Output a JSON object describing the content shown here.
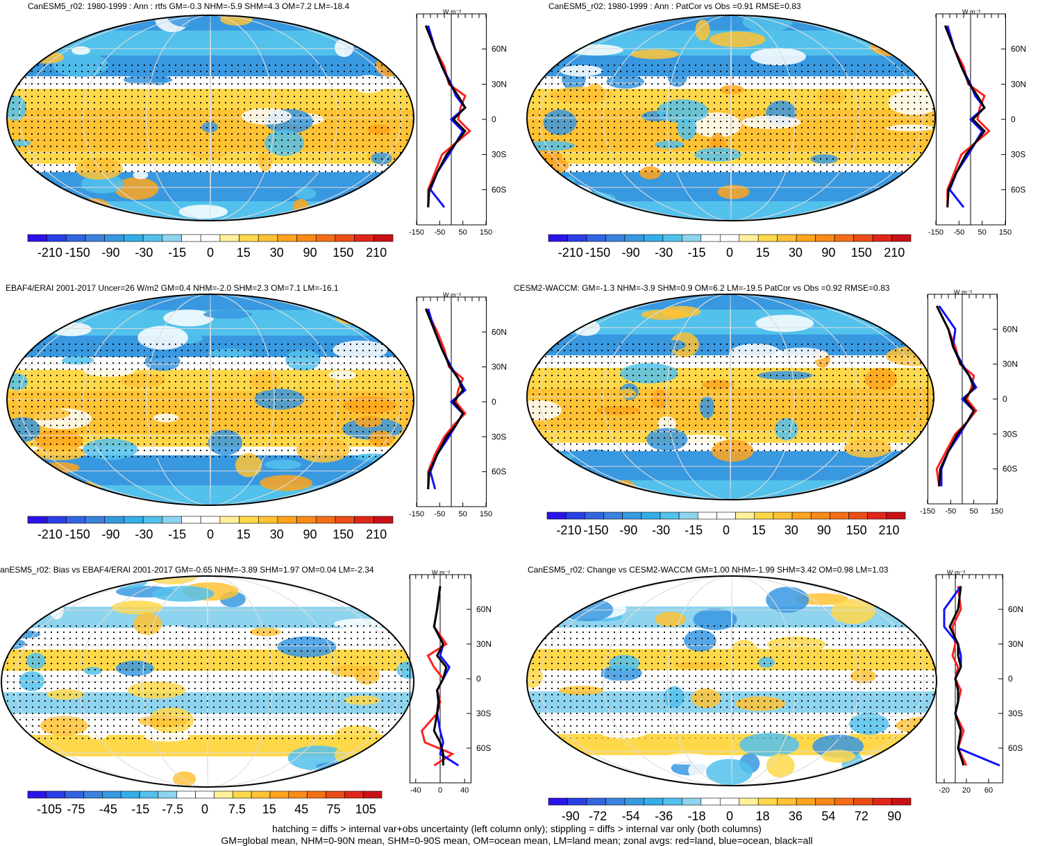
{
  "panels": [
    {
      "title": "CanESM5_r02: 1980-1999 : Ann : rtfs GM=-0.3 NHM=-5.9 SHM=4.3 OM=7.2 LM=-18.4",
      "colorbar_labels": [
        "-210",
        "-150",
        "-90",
        "-30",
        "-15",
        "0",
        "15",
        "30",
        "90",
        "150",
        "210"
      ],
      "zonal_xticks": [
        "-150",
        "-50",
        "50",
        "150"
      ],
      "zonal_xlim": [
        -150,
        150
      ],
      "zonal_unit": "W m⁻²"
    },
    {
      "title": "CanESM5_r02: 1980-1999 : Ann : PatCor vs Obs =0.91 RMSE=0.83",
      "colorbar_labels": [
        "-210",
        "-150",
        "-90",
        "-30",
        "-15",
        "0",
        "15",
        "30",
        "90",
        "150",
        "210"
      ],
      "zonal_xticks": [
        "-150",
        "-50",
        "50",
        "150"
      ],
      "zonal_xlim": [
        -150,
        150
      ],
      "zonal_unit": "W m⁻²"
    },
    {
      "title": "EBAF4/ERAI 2001-2017 Uncer=26 W/m2 GM=0.4 NHM=-2.0 SHM=2.3 OM=7.1 LM=-16.1",
      "colorbar_labels": [
        "-210",
        "-150",
        "-90",
        "-30",
        "-15",
        "0",
        "15",
        "30",
        "90",
        "150",
        "210"
      ],
      "zonal_xticks": [
        "-150",
        "-50",
        "50",
        "150"
      ],
      "zonal_xlim": [
        -150,
        150
      ],
      "zonal_unit": "W m⁻²"
    },
    {
      "title": "CESM2-WACCM: GM=-1.3 NHM=-3.9 SHM=0.9 OM=6.2 LM=-19.5 PatCor vs Obs =0.92 RMSE=0.83",
      "colorbar_labels": [
        "-210",
        "-150",
        "-90",
        "-30",
        "-15",
        "0",
        "15",
        "30",
        "90",
        "150",
        "210"
      ],
      "zonal_xticks": [
        "-150",
        "-50",
        "50",
        "150"
      ],
      "zonal_xlim": [
        -150,
        150
      ],
      "zonal_unit": "W m⁻²"
    },
    {
      "title": "anESM5_r02: Bias vs EBAF4/ERAI 2001-2017 GM=-0.65 NHM=-3.89 SHM=1.97 OM=0.04 LM=-2.34",
      "colorbar_labels": [
        "-105",
        "-75",
        "-45",
        "-15",
        "-7.5",
        "0",
        "7.5",
        "15",
        "45",
        "75",
        "105"
      ],
      "zonal_xticks": [
        "-40",
        "0",
        "40"
      ],
      "zonal_xlim": [
        -50,
        50
      ],
      "zonal_unit": "W m⁻²"
    },
    {
      "title": "CanESM5_r02: Change vs CESM2-WACCM GM=1.00 NHM=-1.99 SHM=3.42 OM=0.98 LM=1.03",
      "colorbar_labels": [
        "-90",
        "-72",
        "-54",
        "-36",
        "-18",
        "0",
        "18",
        "36",
        "54",
        "72",
        "90"
      ],
      "zonal_xticks": [
        "-20",
        "20",
        "60"
      ],
      "zonal_xlim": [
        -35,
        85
      ],
      "zonal_unit": "W m⁻²"
    }
  ],
  "lat_ticks": [
    "60N",
    "30N",
    "0",
    "30S",
    "60S"
  ],
  "colors": {
    "cbar": [
      "#2b14e8",
      "#2a3fe6",
      "#3365e0",
      "#3b82dd",
      "#3898e0",
      "#33aee8",
      "#52c1ec",
      "#8ed4ee",
      "#ffffff",
      "#ffffff",
      "#fff099",
      "#ffd84a",
      "#ffc234",
      "#ffa41c",
      "#f98a18",
      "#f46e16",
      "#ec4d16",
      "#e0261a",
      "#c81016"
    ],
    "land": "#ff2020",
    "ocean": "#1010ff",
    "all": "#000000"
  },
  "footer": {
    "line1": "hatching = diffs > internal var+obs uncertainty (left column only); stippling = diffs > internal var only (both columns)",
    "line2": "GM=global mean, NHM=0-90N mean, SHM=0-90S mean, OM=ocean mean, LM=land mean; zonal avgs: red=land, blue=ocean, black=all"
  },
  "chart_data": [
    {
      "type": "heatmap",
      "title": "CanESM5_r02: 1980-1999 : Ann : rtfs GM=-0.3 NHM=-5.9 SHM=4.3 OM=7.2 LM=-18.4",
      "colorbar": [
        "-210",
        "-150",
        "-90",
        "-30",
        "-15",
        "0",
        "15",
        "30",
        "90",
        "150",
        "210"
      ],
      "zonal_mean": {
        "lat": [
          80,
          60,
          45,
          30,
          20,
          10,
          0,
          -10,
          -20,
          -30,
          -45,
          -60,
          -75
        ],
        "land": [
          -110,
          -70,
          -30,
          -10,
          60,
          40,
          30,
          80,
          20,
          -40,
          -70,
          -100,
          -100
        ],
        "ocean": [
          -100,
          -70,
          -40,
          0,
          20,
          60,
          0,
          50,
          20,
          -10,
          -60,
          -90,
          -30
        ],
        "all": [
          -110,
          -70,
          -40,
          -5,
          30,
          60,
          10,
          60,
          20,
          -20,
          -60,
          -95,
          -100
        ]
      },
      "xlim": [
        -150,
        150
      ]
    },
    {
      "type": "heatmap",
      "title": "CanESM5_r02: 1980-1999 : Ann : PatCor vs Obs =0.91 RMSE=0.83",
      "colorbar": [
        "-210",
        "-150",
        "-90",
        "-30",
        "-15",
        "0",
        "15",
        "30",
        "90",
        "150",
        "210"
      ],
      "zonal_mean": {
        "lat": [
          80,
          60,
          45,
          30,
          20,
          10,
          0,
          -10,
          -20,
          -30,
          -45,
          -60,
          -75
        ],
        "land": [
          -110,
          -70,
          -30,
          -10,
          60,
          40,
          30,
          80,
          20,
          -40,
          -70,
          -100,
          -100
        ],
        "ocean": [
          -100,
          -70,
          -40,
          0,
          20,
          60,
          0,
          50,
          20,
          -10,
          -60,
          -90,
          -30
        ],
        "all": [
          -110,
          -70,
          -40,
          -5,
          30,
          60,
          10,
          60,
          20,
          -20,
          -60,
          -95,
          -100
        ]
      },
      "xlim": [
        -150,
        150
      ]
    },
    {
      "type": "heatmap",
      "title": "EBAF4/ERAI 2001-2017 Uncer=26 W/m2 GM=0.4 NHM=-2.0 SHM=2.3 OM=7.1 LM=-16.1",
      "colorbar": [
        "-210",
        "-150",
        "-90",
        "-30",
        "-15",
        "0",
        "15",
        "30",
        "90",
        "150",
        "210"
      ],
      "zonal_mean": {
        "lat": [
          80,
          60,
          45,
          30,
          20,
          10,
          0,
          -10,
          -20,
          -30,
          -45,
          -60,
          -75
        ],
        "land": [
          -110,
          -60,
          -30,
          -10,
          50,
          30,
          20,
          60,
          10,
          -30,
          -70,
          -100,
          -100
        ],
        "ocean": [
          -100,
          -70,
          -40,
          0,
          30,
          60,
          0,
          50,
          20,
          -10,
          -60,
          -90,
          -70
        ],
        "all": [
          -110,
          -70,
          -40,
          -5,
          30,
          50,
          10,
          50,
          20,
          -20,
          -60,
          -95,
          -100
        ]
      },
      "xlim": [
        -150,
        150
      ]
    },
    {
      "type": "heatmap",
      "title": "CESM2-WACCM: GM=-1.3 NHM=-3.9 SHM=0.9 OM=6.2 LM=-19.5 PatCor vs Obs =0.92 RMSE=0.83",
      "colorbar": [
        "-210",
        "-150",
        "-90",
        "-30",
        "-15",
        "0",
        "15",
        "30",
        "90",
        "150",
        "210"
      ],
      "zonal_mean": {
        "lat": [
          80,
          60,
          45,
          30,
          20,
          10,
          0,
          -10,
          -20,
          -30,
          -45,
          -60,
          -75
        ],
        "land": [
          -110,
          -60,
          -30,
          -10,
          50,
          40,
          20,
          60,
          20,
          -30,
          -70,
          -110,
          -100
        ],
        "ocean": [
          -100,
          -30,
          -40,
          0,
          30,
          60,
          0,
          50,
          20,
          -10,
          -60,
          -90,
          -90
        ],
        "all": [
          -110,
          -60,
          -40,
          -5,
          30,
          50,
          10,
          50,
          20,
          -20,
          -60,
          -95,
          -100
        ]
      },
      "xlim": [
        -150,
        150
      ]
    },
    {
      "type": "heatmap",
      "title": "anESM5_r02: Bias vs EBAF4/ERAI 2001-2017 GM=-0.65 NHM=-3.89 SHM=1.97 OM=0.04 LM=-2.34",
      "colorbar": [
        "-105",
        "-75",
        "-45",
        "-15",
        "-7.5",
        "0",
        "7.5",
        "15",
        "45",
        "75",
        "105"
      ],
      "zonal_mean": {
        "lat": [
          80,
          60,
          45,
          30,
          20,
          10,
          0,
          -10,
          -20,
          -30,
          -45,
          -55,
          -65,
          -75
        ],
        "land": [
          0,
          -5,
          -10,
          10,
          -20,
          -10,
          5,
          -5,
          0,
          -5,
          -30,
          -25,
          20,
          -10
        ],
        "ocean": [
          0,
          -5,
          -10,
          5,
          0,
          15,
          5,
          -5,
          -3,
          -5,
          0,
          5,
          0,
          30
        ],
        "all": [
          0,
          -5,
          -10,
          5,
          -5,
          10,
          5,
          -5,
          -2,
          -5,
          -10,
          0,
          5,
          5
        ]
      },
      "xlim": [
        -50,
        50
      ]
    },
    {
      "type": "heatmap",
      "title": "CanESM5_r02: Change vs CESM2-WACCM GM=1.00 NHM=-1.99 SHM=3.42 OM=0.98 LM=1.03",
      "colorbar": [
        "-90",
        "-72",
        "-54",
        "-36",
        "-18",
        "0",
        "18",
        "36",
        "54",
        "72",
        "90"
      ],
      "zonal_mean": {
        "lat": [
          80,
          60,
          45,
          30,
          20,
          10,
          0,
          -10,
          -20,
          -30,
          -45,
          -60,
          -75
        ],
        "land": [
          5,
          10,
          -5,
          0,
          -5,
          5,
          0,
          10,
          5,
          0,
          15,
          5,
          20
        ],
        "ocean": [
          10,
          -20,
          -20,
          5,
          10,
          10,
          0,
          5,
          5,
          0,
          10,
          5,
          80
        ],
        "all": [
          10,
          5,
          -10,
          5,
          5,
          10,
          0,
          5,
          5,
          0,
          10,
          5,
          15
        ]
      },
      "xlim": [
        -35,
        85
      ]
    }
  ]
}
